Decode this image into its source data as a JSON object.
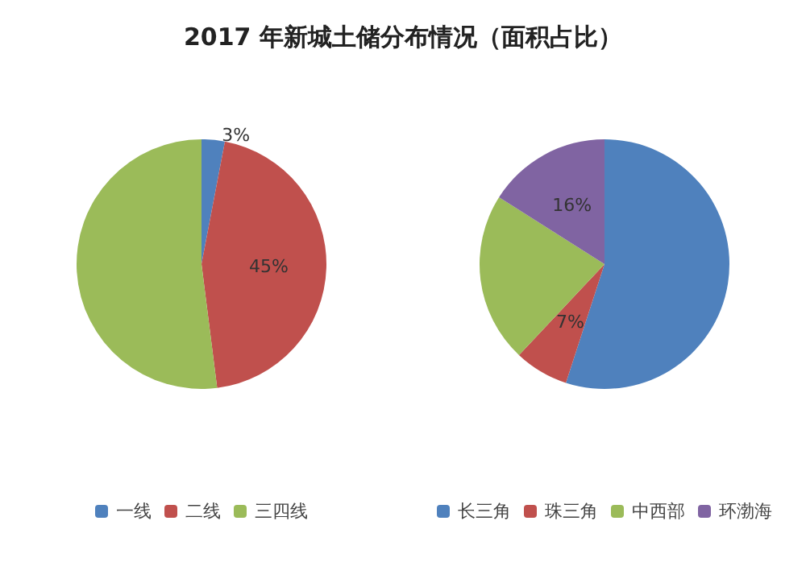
{
  "chart_data": [
    {
      "type": "pie",
      "title": "2017 年新城土储分布情况（面积占比）",
      "categories": [
        "一线",
        "二线",
        "三四线"
      ],
      "values": [
        3,
        45,
        52
      ],
      "colors": [
        "#4f81bd",
        "#c0504d",
        "#9bbb59"
      ],
      "value_labels": [
        "3%",
        "45%",
        null
      ],
      "legend": "bottom"
    },
    {
      "type": "pie",
      "categories": [
        "长三角",
        "珠三角",
        "中西部",
        "环渤海"
      ],
      "values": [
        55,
        7,
        22,
        16
      ],
      "colors": [
        "#4f81bd",
        "#c0504d",
        "#9bbb59",
        "#8064a2"
      ],
      "value_labels": [
        null,
        "7%",
        null,
        "16%"
      ],
      "legend": "bottom"
    }
  ]
}
